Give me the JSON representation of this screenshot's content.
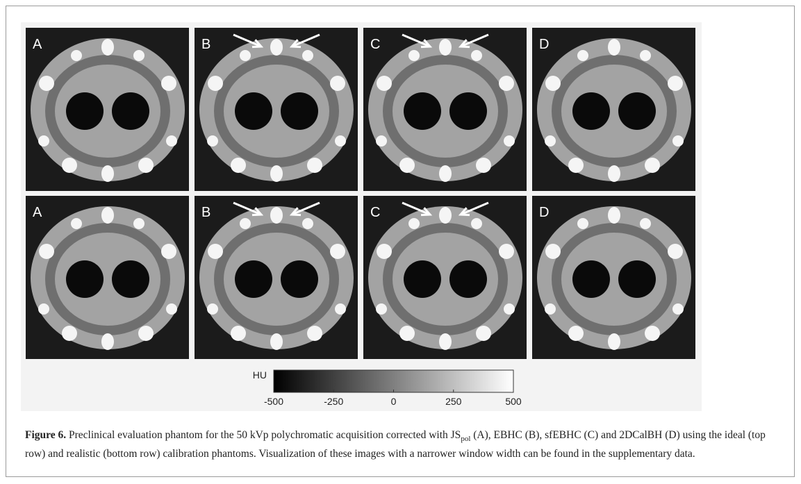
{
  "figure": {
    "panels": [
      {
        "label": "A",
        "arrows": false
      },
      {
        "label": "B",
        "arrows": true
      },
      {
        "label": "C",
        "arrows": true
      },
      {
        "label": "D",
        "arrows": false
      },
      {
        "label": "A",
        "arrows": false
      },
      {
        "label": "B",
        "arrows": true
      },
      {
        "label": "C",
        "arrows": true
      },
      {
        "label": "D",
        "arrows": false
      }
    ],
    "colorbar": {
      "label": "HU",
      "lim": [
        -500,
        500
      ],
      "ticks": [
        -500,
        -250,
        0,
        250,
        500
      ]
    },
    "caption": {
      "number": "Figure 6.",
      "text_before": "Preclinical evaluation phantom for the 50 kVp polychromatic acquisition corrected with JS",
      "subscript": "pol",
      "text_after": " (A), EBHC (B), sfEBHC (C) and 2DCalBH (D) using the ideal (top row) and realistic (bottom row) calibration phantoms. Visualization of these images with a narrower window width can be found in the supplementary data."
    }
  }
}
